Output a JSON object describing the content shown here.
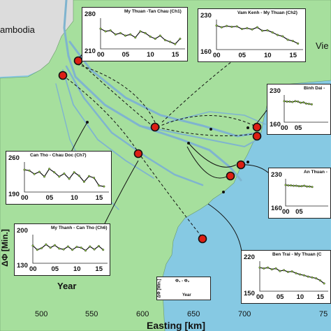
{
  "map": {
    "place_labels": [
      "ambodia",
      "Vie"
    ],
    "x_axis": {
      "label": "Easting [km]",
      "ticks": [
        "500",
        "550",
        "600",
        "650",
        "700",
        "75"
      ]
    },
    "colors": {
      "land": "#a6df9d",
      "sea": "#86c9e3",
      "river": "#7fb4cf",
      "cambodia": "#dcdcdc"
    },
    "stations": 9
  },
  "legend": {
    "ylabel": "ΔΦ [Min.]",
    "xlabel": "Year",
    "small": {
      "ylabel": "ΔΦ [Min.]",
      "title": "Φ₁ - Φ₂",
      "xlabel": "Year"
    }
  },
  "insets": [
    {
      "id": "ch1",
      "title": "My Thuan -Tan Chau (Ch1)",
      "ymax": "280",
      "ymin": "210",
      "xticks": [
        "00",
        "05",
        "10",
        "15"
      ],
      "chart_data": {
        "type": "line",
        "x": [
          0,
          1,
          2,
          3,
          4,
          5,
          6,
          7,
          8,
          9,
          10,
          11,
          12,
          13,
          14,
          15,
          16
        ],
        "values": [
          256,
          250,
          252,
          243,
          246,
          240,
          243,
          236,
          250,
          246,
          238,
          233,
          240,
          230,
          226,
          221,
          233
        ],
        "ylim": [
          210,
          280
        ]
      }
    },
    {
      "id": "ch2",
      "title": "Vam Kenh - My Thuan (Ch2)",
      "ymax": "230",
      "ymin": "160",
      "xticks": [
        "00",
        "05",
        "10",
        "15"
      ],
      "chart_data": {
        "type": "line",
        "x": [
          0,
          1,
          2,
          3,
          4,
          5,
          6,
          7,
          8,
          9,
          10,
          11,
          12,
          13,
          14,
          15,
          16
        ],
        "values": [
          216,
          212,
          215,
          213,
          214,
          208,
          210,
          207,
          212,
          204,
          205,
          200,
          194,
          191,
          183,
          180,
          174
        ],
        "ylim": [
          160,
          230
        ]
      }
    },
    {
      "id": "binhdai",
      "title": "Binh Dai -",
      "ymax": "230",
      "ymin": "160",
      "xticks": [
        "00",
        "05"
      ],
      "chart_data": {
        "type": "line",
        "x": [
          0,
          1,
          2,
          3,
          4,
          5,
          6,
          7,
          8,
          9,
          10
        ],
        "values": [
          214,
          213,
          213,
          212,
          214,
          213,
          210,
          211,
          208,
          207,
          206
        ],
        "ylim": [
          160,
          230
        ]
      }
    },
    {
      "id": "anthuan",
      "title": "An Thuan -",
      "ymax": "230",
      "ymin": "160",
      "xticks": [
        "00",
        "05"
      ],
      "chart_data": {
        "type": "line",
        "x": [
          0,
          1,
          2,
          3,
          4,
          5,
          6,
          7,
          8,
          9,
          10
        ],
        "values": [
          214,
          213,
          213,
          212,
          212,
          211,
          211,
          212,
          210,
          210,
          209
        ],
        "ylim": [
          160,
          230
        ]
      }
    },
    {
      "id": "ch7",
      "title": "Can Tho - Chau Doc (Ch7)",
      "ymax": "260",
      "ymin": "190",
      "xticks": [
        "00",
        "05",
        "10",
        "15"
      ],
      "chart_data": {
        "type": "line",
        "x": [
          0,
          1,
          2,
          3,
          4,
          5,
          6,
          7,
          8,
          9,
          10,
          11,
          12,
          13,
          14,
          15,
          16
        ],
        "values": [
          242,
          240,
          232,
          237,
          226,
          244,
          236,
          226,
          233,
          221,
          236,
          228,
          214,
          227,
          223,
          205,
          203
        ],
        "ylim": [
          190,
          260
        ]
      }
    },
    {
      "id": "ch6",
      "title": "My Thanh - Can Tho (Ch6)",
      "ymax": "200",
      "ymin": "130",
      "xticks": [
        "00",
        "05",
        "10",
        "15"
      ],
      "chart_data": {
        "type": "line",
        "x": [
          0,
          1,
          2,
          3,
          4,
          5,
          6,
          7,
          8,
          9,
          10,
          11,
          12,
          13,
          14,
          15,
          16
        ],
        "values": [
          173,
          163,
          167,
          176,
          168,
          174,
          166,
          164,
          171,
          163,
          170,
          168,
          161,
          171,
          164,
          172,
          163
        ],
        "ylim": [
          130,
          200
        ]
      }
    },
    {
      "id": "bentrai",
      "title": "Ben Trai - My Thuan (C",
      "ymax": "220",
      "ymin": "150",
      "xticks": [
        "00",
        "05",
        "10",
        "15"
      ],
      "chart_data": {
        "type": "line",
        "x": [
          0,
          1,
          2,
          3,
          4,
          5,
          6,
          7,
          8,
          9,
          10,
          11,
          12,
          13,
          14,
          15,
          16
        ],
        "values": [
          205,
          203,
          205,
          201,
          203,
          197,
          199,
          195,
          196,
          192,
          189,
          187,
          184,
          182,
          180,
          175,
          168
        ],
        "ylim": [
          150,
          220
        ]
      }
    }
  ]
}
